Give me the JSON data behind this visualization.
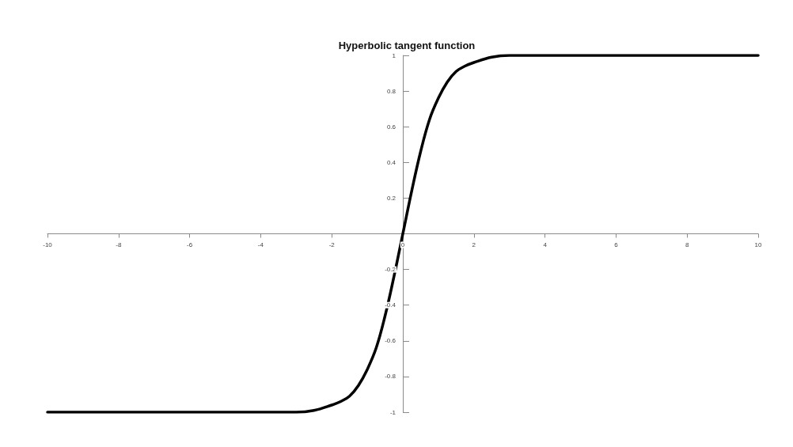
{
  "chart_data": {
    "type": "line",
    "title": "Hyperbolic tangent function",
    "x": [
      -10,
      -6,
      -4,
      -3,
      -2.5,
      -2,
      -1.75,
      -1.5,
      -1.25,
      -1,
      -0.75,
      -0.5,
      -0.25,
      0,
      0.25,
      0.5,
      0.75,
      1,
      1.25,
      1.5,
      1.75,
      2,
      2.5,
      3,
      4,
      6,
      10
    ],
    "series": [
      {
        "color": "#000000",
        "values": [
          -1,
          -1,
          -1,
          -1,
          -0.99,
          -0.96,
          -0.94,
          -0.91,
          -0.85,
          -0.76,
          -0.64,
          -0.46,
          -0.24,
          0,
          0.24,
          0.46,
          0.64,
          0.76,
          0.85,
          0.91,
          0.94,
          0.96,
          0.99,
          1,
          1,
          1,
          1
        ]
      }
    ],
    "xlim": [
      -10,
      10
    ],
    "xticks": [
      -10,
      -8,
      -6,
      -4,
      -2,
      0,
      2,
      4,
      6,
      8,
      10
    ],
    "ylim": [
      -1,
      1
    ],
    "yticks": [
      -1,
      -0.8,
      -0.6,
      -0.4,
      -0.2,
      0.2,
      0.4,
      0.6,
      0.8,
      1
    ],
    "grid": false,
    "marker": "none",
    "line_style": "solid"
  }
}
